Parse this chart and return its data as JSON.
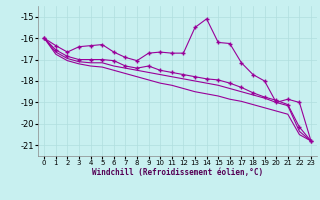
{
  "xlabel": "Windchill (Refroidissement éolien,°C)",
  "background_color": "#c8f0f0",
  "grid_color": "#b0dede",
  "line_color": "#990099",
  "xlim": [
    -0.5,
    23.5
  ],
  "ylim": [
    -21.5,
    -14.5
  ],
  "yticks": [
    -21,
    -20,
    -19,
    -18,
    -17,
    -16,
    -15
  ],
  "xticks": [
    0,
    1,
    2,
    3,
    4,
    5,
    6,
    7,
    8,
    9,
    10,
    11,
    12,
    13,
    14,
    15,
    16,
    17,
    18,
    19,
    20,
    21,
    22,
    23
  ],
  "series1": [
    -16.0,
    -16.35,
    -16.65,
    -16.4,
    -16.35,
    -16.3,
    -16.65,
    -16.9,
    -17.05,
    -16.7,
    -16.65,
    -16.7,
    -16.7,
    -15.5,
    -15.1,
    -16.2,
    -16.25,
    -17.15,
    -17.7,
    -18.0,
    -19.0,
    -18.85,
    -19.0,
    -20.8
  ],
  "series2": [
    -16.0,
    -16.55,
    -16.85,
    -17.0,
    -17.0,
    -17.0,
    -17.05,
    -17.3,
    -17.4,
    -17.3,
    -17.5,
    -17.6,
    -17.7,
    -17.8,
    -17.9,
    -17.95,
    -18.1,
    -18.3,
    -18.55,
    -18.75,
    -18.9,
    -19.1,
    -20.15,
    -20.8
  ],
  "series3": [
    -16.0,
    -16.65,
    -16.95,
    -17.1,
    -17.15,
    -17.15,
    -17.3,
    -17.4,
    -17.5,
    -17.6,
    -17.7,
    -17.8,
    -17.9,
    -18.0,
    -18.1,
    -18.2,
    -18.35,
    -18.5,
    -18.65,
    -18.8,
    -19.0,
    -19.15,
    -20.35,
    -20.8
  ],
  "series4": [
    -16.0,
    -16.75,
    -17.05,
    -17.2,
    -17.3,
    -17.35,
    -17.5,
    -17.65,
    -17.8,
    -17.95,
    -18.1,
    -18.2,
    -18.35,
    -18.5,
    -18.6,
    -18.7,
    -18.85,
    -18.95,
    -19.1,
    -19.25,
    -19.4,
    -19.55,
    -20.5,
    -20.8
  ]
}
